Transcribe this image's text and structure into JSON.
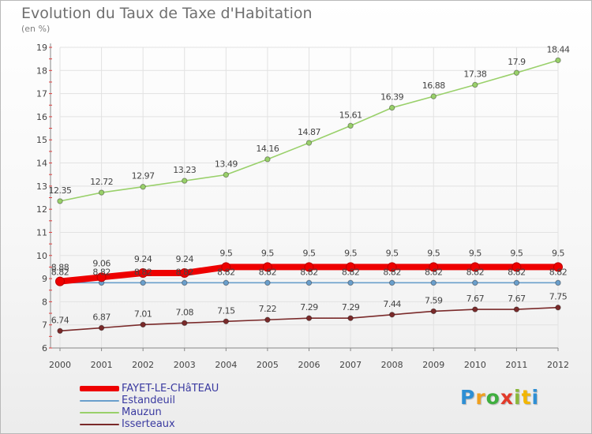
{
  "header": {
    "title": "Evolution du Taux de Taxe d'Habitation",
    "subtitle": "(en %)"
  },
  "logo": {
    "text": "Proxiti",
    "letters": [
      {
        "ch": "P",
        "color": "#2e8fd4"
      },
      {
        "ch": "r",
        "color": "#f0a020"
      },
      {
        "ch": "o",
        "color": "#3fae3f"
      },
      {
        "ch": "x",
        "color": "#e23a2a"
      },
      {
        "ch": "i",
        "color": "#8ab83a"
      },
      {
        "ch": "t",
        "color": "#f2b600"
      },
      {
        "ch": "i",
        "color": "#2e8fd4"
      }
    ]
  },
  "chart_data": {
    "type": "line",
    "title": "Evolution du Taux de Taxe d'Habitation",
    "ylabel": "(en %)",
    "xlabel": "",
    "x": [
      "2000",
      "2001",
      "2002",
      "2003",
      "2004",
      "2005",
      "2006",
      "2007",
      "2008",
      "2009",
      "2010",
      "2011",
      "2012"
    ],
    "ylim": [
      6,
      19
    ],
    "yticks": [
      "6",
      "7",
      "8",
      "9",
      "10",
      "11",
      "12",
      "13",
      "14",
      "15",
      "16",
      "17",
      "18",
      "19"
    ],
    "grid": true,
    "legend_position": "bottom-left",
    "series": [
      {
        "name": "FAYET-LE-CHâTEAU",
        "color": "#ee0000",
        "values": [
          8.88,
          9.06,
          9.24,
          9.24,
          9.5,
          9.5,
          9.5,
          9.5,
          9.5,
          9.5,
          9.5,
          9.5,
          9.5
        ],
        "labels": [
          "8.88",
          "9.06",
          "9.24",
          "9.24",
          "9.5",
          "9.5",
          "9.5",
          "9.5",
          "9.5",
          "9.5",
          "9.5",
          "9.5",
          "9.5"
        ]
      },
      {
        "name": "Estandeuil",
        "color": "#6a9fcc",
        "values": [
          8.82,
          8.82,
          8.82,
          8.82,
          8.82,
          8.82,
          8.82,
          8.82,
          8.82,
          8.82,
          8.82,
          8.82,
          8.82
        ],
        "labels": [
          "8.82",
          "8.82",
          "8.82",
          "8.82",
          "8.82",
          "8.82",
          "8.82",
          "8.82",
          "8.82",
          "8.82",
          "8.82",
          "8.82",
          "8.82"
        ]
      },
      {
        "name": "Mauzun",
        "color": "#99d06a",
        "values": [
          12.35,
          12.72,
          12.97,
          13.23,
          13.49,
          14.16,
          14.87,
          15.61,
          16.39,
          16.88,
          17.38,
          17.9,
          18.44
        ],
        "labels": [
          "12.35",
          "12.72",
          "12.97",
          "13.23",
          "13.49",
          "14.16",
          "14.87",
          "15.61",
          "16.39",
          "16.88",
          "17.38",
          "17.9",
          "18.44"
        ]
      },
      {
        "name": "Isserteaux",
        "color": "#7a2a2a",
        "values": [
          6.74,
          6.87,
          7.01,
          7.08,
          7.15,
          7.22,
          7.29,
          7.29,
          7.44,
          7.59,
          7.67,
          7.67,
          7.75
        ],
        "labels": [
          "6.74",
          "6.87",
          "7.01",
          "7.08",
          "7.15",
          "7.22",
          "7.29",
          "7.29",
          "7.44",
          "7.59",
          "7.67",
          "7.67",
          "7.75"
        ]
      }
    ]
  }
}
